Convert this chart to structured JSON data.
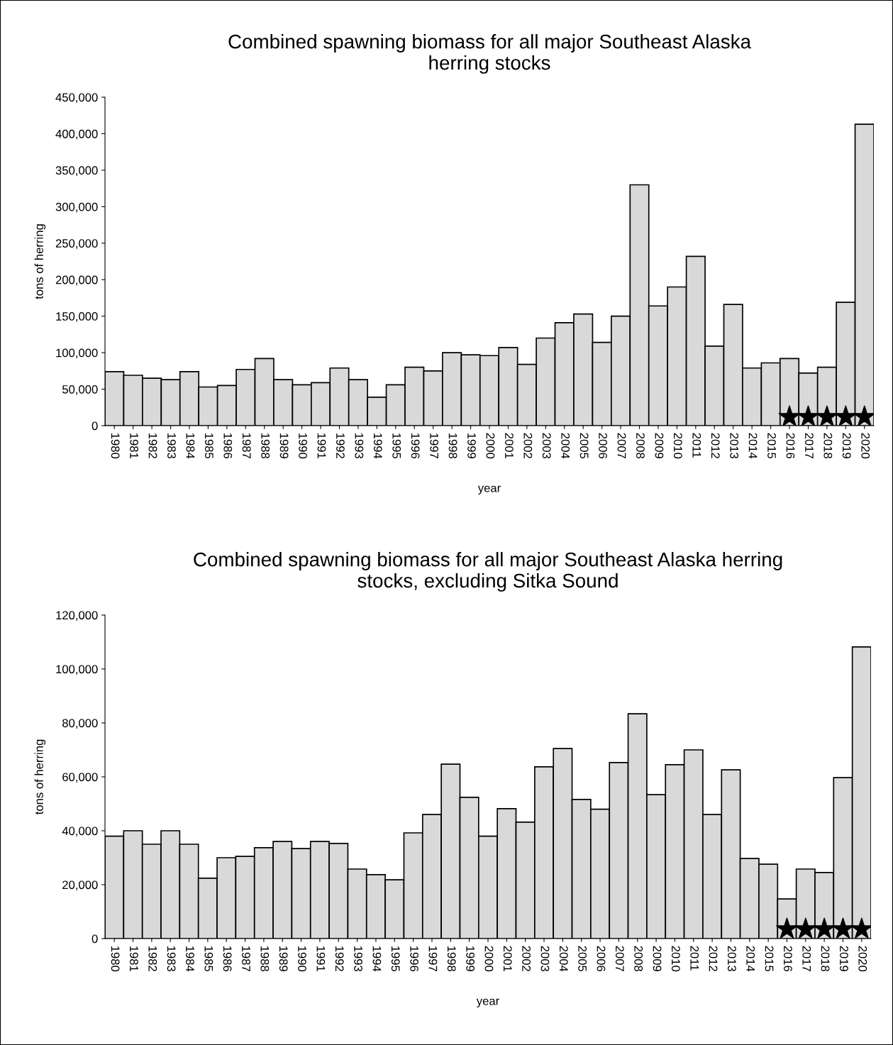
{
  "chart_data": [
    {
      "type": "bar",
      "title": "Combined spawning biomass for all major Southeast Alaska\nherring stocks",
      "xlabel": "year",
      "ylabel": "tons of herring",
      "categories": [
        "1980",
        "1981",
        "1982",
        "1983",
        "1984",
        "1985",
        "1986",
        "1987",
        "1988",
        "1989",
        "1990",
        "1991",
        "1992",
        "1993",
        "1994",
        "1995",
        "1996",
        "1997",
        "1998",
        "1999",
        "2000",
        "2001",
        "2002",
        "2003",
        "2004",
        "2005",
        "2006",
        "2007",
        "2008",
        "2009",
        "2010",
        "2011",
        "2012",
        "2013",
        "2014",
        "2015",
        "2016",
        "2017",
        "2018",
        "2019",
        "2020"
      ],
      "series": [
        {
          "color": "#d9d9d9",
          "values": [
            74000,
            69000,
            65000,
            63000,
            74000,
            53000,
            55000,
            77000,
            92000,
            63000,
            56000,
            59000,
            79000,
            63000,
            39000,
            56000,
            80000,
            75000,
            100000,
            97000,
            96000,
            107000,
            84000,
            120000,
            141000,
            153000,
            114000,
            150000,
            330000,
            164000,
            190000,
            232000,
            109000,
            166000,
            79000,
            86000,
            92000,
            72000,
            80000,
            169000,
            413000
          ]
        },
        {
          "type": "scatter",
          "marker": "star",
          "color": "#000000",
          "values": [
            null,
            null,
            null,
            null,
            null,
            null,
            null,
            null,
            null,
            null,
            null,
            null,
            null,
            null,
            null,
            null,
            null,
            null,
            null,
            null,
            null,
            null,
            null,
            null,
            null,
            null,
            null,
            null,
            null,
            null,
            null,
            null,
            null,
            null,
            null,
            null,
            12000,
            12000,
            12000,
            12000,
            12000
          ]
        }
      ],
      "ylim": [
        0,
        450000
      ],
      "yticks": [
        {
          "value": 0,
          "label": "0"
        },
        {
          "value": 50000,
          "label": "50,000"
        },
        {
          "value": 100000,
          "label": "100,000"
        },
        {
          "value": 150000,
          "label": "150,000"
        },
        {
          "value": 200000,
          "label": "200,000"
        },
        {
          "value": 250000,
          "label": "250,000"
        },
        {
          "value": 300000,
          "label": "300,000"
        },
        {
          "value": 350000,
          "label": "350,000"
        },
        {
          "value": 400000,
          "label": "400,000"
        },
        {
          "value": 450000,
          "label": "450,000"
        }
      ],
      "grid": false,
      "legend": false
    },
    {
      "type": "bar",
      "title": "Combined spawning biomass for all major Southeast Alaska herring\nstocks, excluding Sitka Sound",
      "xlabel": "year",
      "ylabel": "tons of herring",
      "categories": [
        "1980",
        "1981",
        "1982",
        "1983",
        "1984",
        "1985",
        "1986",
        "1987",
        "1988",
        "1989",
        "1990",
        "1991",
        "1992",
        "1993",
        "1994",
        "1995",
        "1996",
        "1997",
        "1998",
        "1999",
        "2000",
        "2001",
        "2002",
        "2003",
        "2004",
        "2005",
        "2006",
        "2007",
        "2008",
        "2009",
        "2010",
        "2011",
        "2012",
        "2013",
        "2014",
        "2015",
        "2016",
        "2017",
        "2018",
        "2019",
        "2020"
      ],
      "series": [
        {
          "color": "#d9d9d9",
          "values": [
            38000,
            40000,
            35000,
            40000,
            35000,
            22400,
            30000,
            30500,
            33700,
            36000,
            33400,
            36000,
            35300,
            25800,
            23700,
            21800,
            39200,
            46000,
            64700,
            52400,
            38000,
            48200,
            43200,
            63700,
            70500,
            51600,
            48000,
            65300,
            83400,
            53400,
            64500,
            70000,
            46000,
            62600,
            29700,
            27600,
            14700,
            25800,
            24500,
            59700,
            108200
          ]
        },
        {
          "type": "scatter",
          "marker": "star",
          "color": "#000000",
          "values": [
            null,
            null,
            null,
            null,
            null,
            null,
            null,
            null,
            null,
            null,
            null,
            null,
            null,
            null,
            null,
            null,
            null,
            null,
            null,
            null,
            null,
            null,
            null,
            null,
            null,
            null,
            null,
            null,
            null,
            null,
            null,
            null,
            null,
            null,
            null,
            null,
            3500,
            3500,
            3500,
            3500,
            3500
          ]
        }
      ],
      "ylim": [
        0,
        120000
      ],
      "yticks": [
        {
          "value": 0,
          "label": "0"
        },
        {
          "value": 20000,
          "label": "20,000"
        },
        {
          "value": 40000,
          "label": "40,000"
        },
        {
          "value": 60000,
          "label": "60,000"
        },
        {
          "value": 80000,
          "label": "80,000"
        },
        {
          "value": 100000,
          "label": "100,000"
        },
        {
          "value": 120000,
          "label": "120,000"
        }
      ],
      "grid": false,
      "legend": false
    }
  ]
}
